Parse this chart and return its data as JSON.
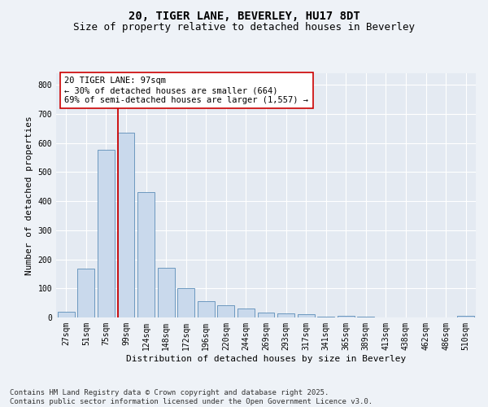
{
  "title1": "20, TIGER LANE, BEVERLEY, HU17 8DT",
  "title2": "Size of property relative to detached houses in Beverley",
  "xlabel": "Distribution of detached houses by size in Beverley",
  "ylabel": "Number of detached properties",
  "bar_labels": [
    "27sqm",
    "51sqm",
    "75sqm",
    "99sqm",
    "124sqm",
    "148sqm",
    "172sqm",
    "196sqm",
    "220sqm",
    "244sqm",
    "269sqm",
    "293sqm",
    "317sqm",
    "341sqm",
    "365sqm",
    "389sqm",
    "413sqm",
    "438sqm",
    "462sqm",
    "486sqm",
    "510sqm"
  ],
  "bar_values": [
    20,
    168,
    578,
    636,
    430,
    171,
    102,
    55,
    41,
    30,
    17,
    15,
    10,
    3,
    5,
    2,
    1,
    0,
    0,
    0,
    5
  ],
  "bar_color": "#c9d9ec",
  "bar_edge_color": "#5b8db8",
  "vline_color": "#cc0000",
  "annotation_text": "20 TIGER LANE: 97sqm\n← 30% of detached houses are smaller (664)\n69% of semi-detached houses are larger (1,557) →",
  "annotation_box_color": "#ffffff",
  "annotation_box_edge": "#cc0000",
  "ylim": [
    0,
    840
  ],
  "yticks": [
    0,
    100,
    200,
    300,
    400,
    500,
    600,
    700,
    800
  ],
  "fig_bg_color": "#eef2f7",
  "ax_bg_color": "#e4eaf2",
  "footer_text": "Contains HM Land Registry data © Crown copyright and database right 2025.\nContains public sector information licensed under the Open Government Licence v3.0.",
  "title_fontsize": 10,
  "subtitle_fontsize": 9,
  "axis_label_fontsize": 8,
  "tick_fontsize": 7,
  "annotation_fontsize": 7.5,
  "footer_fontsize": 6.5,
  "grid_color": "#ffffff"
}
